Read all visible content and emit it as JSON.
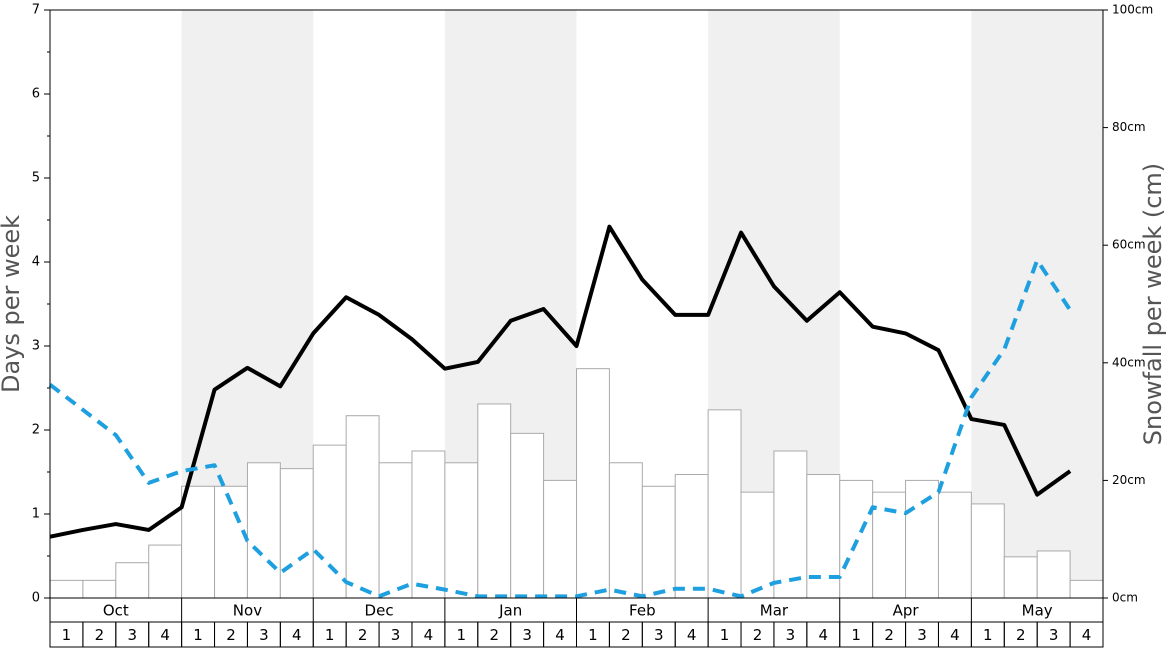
{
  "chart_data": {
    "type": "combo",
    "ylabel": "Days per week",
    "y2label": "Snowfall per week (cm)",
    "months": [
      "Oct",
      "Nov",
      "Dec",
      "Jan",
      "Feb",
      "Mar",
      "Apr",
      "May"
    ],
    "categories": [
      "1",
      "2",
      "3",
      "4",
      "1",
      "2",
      "3",
      "4",
      "1",
      "2",
      "3",
      "4",
      "1",
      "2",
      "3",
      "4",
      "1",
      "2",
      "3",
      "4",
      "1",
      "2",
      "3",
      "4",
      "1",
      "2",
      "3",
      "4",
      "1",
      "2",
      "3",
      "4"
    ],
    "ylim": [
      0,
      7
    ],
    "yticks": [
      0,
      1,
      2,
      3,
      4,
      5,
      6,
      7
    ],
    "y2lim": [
      0,
      100
    ],
    "y2ticks": [
      {
        "value": 0,
        "label": "0cm"
      },
      {
        "value": 20,
        "label": "20cm"
      },
      {
        "value": 40,
        "label": "40cm"
      },
      {
        "value": 60,
        "label": "60cm"
      },
      {
        "value": 80,
        "label": "80cm"
      },
      {
        "value": 100,
        "label": "100cm"
      }
    ],
    "series": [
      {
        "type": "bar",
        "axis": "y2",
        "color": "#ffffff",
        "values": [
          3,
          3,
          6,
          9,
          19,
          19,
          23,
          22,
          26,
          31,
          23,
          25,
          23,
          33,
          28,
          20,
          39,
          23,
          19,
          21,
          32,
          18,
          25,
          21,
          20,
          18,
          20,
          18,
          16,
          7,
          8,
          3
        ]
      },
      {
        "type": "line",
        "color": "#000000",
        "values": [
          0.73,
          0.81,
          0.88,
          0.81,
          1.08,
          2.48,
          2.74,
          2.52,
          3.15,
          3.58,
          3.37,
          3.08,
          2.73,
          2.81,
          3.3,
          3.44,
          3.0,
          4.42,
          3.79,
          3.37,
          3.37,
          4.35,
          3.71,
          3.3,
          3.64,
          3.23,
          3.15,
          2.95,
          2.13,
          2.06,
          1.23,
          1.51
        ]
      },
      {
        "type": "line",
        "dashed": true,
        "color": "#1ea0e0",
        "values": [
          2.54,
          2.24,
          1.94,
          1.37,
          1.51,
          1.58,
          0.68,
          0.3,
          0.58,
          0.19,
          0.02,
          0.17,
          0.1,
          0.02,
          0.02,
          0.02,
          0.02,
          0.1,
          0.02,
          0.11,
          0.11,
          0.02,
          0.18,
          0.25,
          0.25,
          1.08,
          1.01,
          1.26,
          2.39,
          2.96,
          4.02,
          3.43
        ]
      }
    ]
  }
}
